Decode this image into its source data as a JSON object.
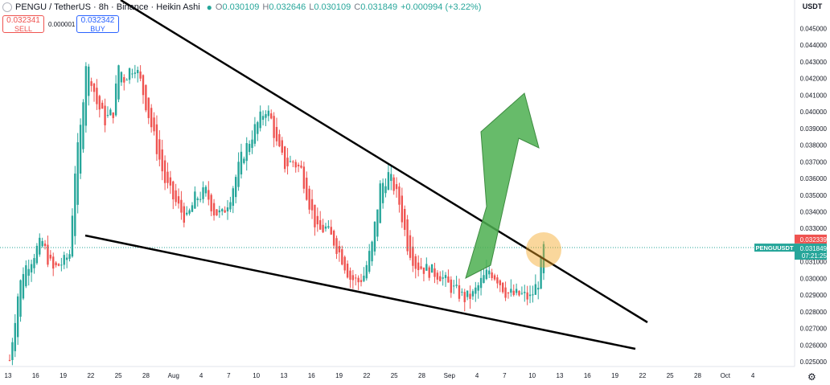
{
  "header": {
    "symbol": "PENGU / TetherUS · 8h · Binance · Heikin Ashi",
    "o_label": "O",
    "o_value": "0.030109",
    "h_label": "H",
    "h_value": "0.032646",
    "l_label": "L",
    "l_value": "0.030109",
    "c_label": "C",
    "c_value": "0.031849",
    "change": "+0.000994 (+3.22%)"
  },
  "trade": {
    "sell_price": "0.032341",
    "sell_label": "SELL",
    "spread": "0.000001",
    "buy_price": "0.032342",
    "buy_label": "BUY"
  },
  "axis": {
    "currency": "USDT"
  },
  "colors": {
    "up": "#26a69a",
    "down": "#ef5350",
    "arrow": "#4caf50",
    "highlight": "#f5a623",
    "trendline": "#000000"
  },
  "icons": {
    "settings": "gear-icon",
    "collapse": "circle-icon"
  },
  "chart_data": {
    "type": "candlestick",
    "title": "PENGU / TetherUS · 8h · Binance · Heikin Ashi",
    "ylim": [
      0.0245,
      0.0465
    ],
    "y_ticks": [
      "0.045000",
      "0.044000",
      "0.043000",
      "0.042000",
      "0.041000",
      "0.040000",
      "0.039000",
      "0.038000",
      "0.037000",
      "0.036000",
      "0.035000",
      "0.034000",
      "0.033000",
      "0.032000",
      "0.031000",
      "0.030000",
      "0.029000",
      "0.028000",
      "0.027000",
      "0.026000",
      "0.025000"
    ],
    "x_ticks": [
      "13",
      "16",
      "19",
      "22",
      "25",
      "28",
      "Aug",
      "4",
      "7",
      "10",
      "13",
      "16",
      "19",
      "22",
      "25",
      "28",
      "Sep",
      "4",
      "7",
      "10",
      "13",
      "16",
      "19",
      "22",
      "25",
      "28",
      "Oct",
      "4"
    ],
    "price_labels": {
      "symbol_tag": "PENGUUSDT",
      "high_tag": "0.032339",
      "last_tag": "0.031849",
      "countdown": "07:21:25"
    },
    "series": [
      {
        "name": "",
        "close_path": [
          [
            0,
            0.0251
          ],
          [
            3,
            0.029
          ],
          [
            5,
            0.0305
          ],
          [
            8,
            0.0312
          ],
          [
            10,
            0.0318
          ],
          [
            12,
            0.0322
          ],
          [
            14,
            0.0312
          ],
          [
            16,
            0.0305
          ],
          [
            18,
            0.0308
          ],
          [
            20,
            0.031
          ],
          [
            22,
            0.0315
          ],
          [
            24,
            0.0365
          ],
          [
            26,
            0.039
          ],
          [
            28,
            0.043
          ],
          [
            30,
            0.042
          ],
          [
            32,
            0.0405
          ],
          [
            35,
            0.0395
          ],
          [
            38,
            0.04
          ],
          [
            40,
            0.0428
          ],
          [
            42,
            0.042
          ],
          [
            44,
            0.0425
          ],
          [
            46,
            0.0428
          ],
          [
            48,
            0.0418
          ],
          [
            51,
            0.0398
          ],
          [
            54,
            0.0378
          ],
          [
            57,
            0.0358
          ],
          [
            60,
            0.0348
          ],
          [
            63,
            0.034
          ],
          [
            65,
            0.0335
          ],
          [
            68,
            0.0348
          ],
          [
            72,
            0.0352
          ],
          [
            75,
            0.034
          ],
          [
            78,
            0.0338
          ],
          [
            81,
            0.035
          ],
          [
            85,
            0.0372
          ],
          [
            90,
            0.039
          ],
          [
            94,
            0.0402
          ],
          [
            96,
            0.0395
          ],
          [
            98,
            0.038
          ],
          [
            101,
            0.0368
          ],
          [
            104,
            0.037
          ],
          [
            107,
            0.0365
          ],
          [
            110,
            0.0345
          ],
          [
            113,
            0.0328
          ],
          [
            116,
            0.033
          ],
          [
            119,
            0.0322
          ],
          [
            122,
            0.0312
          ],
          [
            125,
            0.03
          ],
          [
            128,
            0.0298
          ],
          [
            130,
            0.0302
          ],
          [
            133,
            0.032
          ],
          [
            136,
            0.0355
          ],
          [
            139,
            0.0362
          ],
          [
            141,
            0.0355
          ],
          [
            143,
            0.0345
          ],
          [
            146,
            0.032
          ],
          [
            149,
            0.0308
          ],
          [
            152,
            0.0306
          ],
          [
            155,
            0.0304
          ],
          [
            158,
            0.0302
          ],
          [
            161,
            0.0296
          ],
          [
            164,
            0.0292
          ],
          [
            167,
            0.0288
          ],
          [
            170,
            0.029
          ],
          [
            173,
            0.0298
          ],
          [
            176,
            0.0305
          ],
          [
            179,
            0.03
          ],
          [
            182,
            0.0292
          ],
          [
            185,
            0.029
          ],
          [
            188,
            0.029
          ],
          [
            191,
            0.0288
          ],
          [
            194,
            0.0298
          ],
          [
            196,
            0.0318
          ]
        ]
      }
    ]
  }
}
